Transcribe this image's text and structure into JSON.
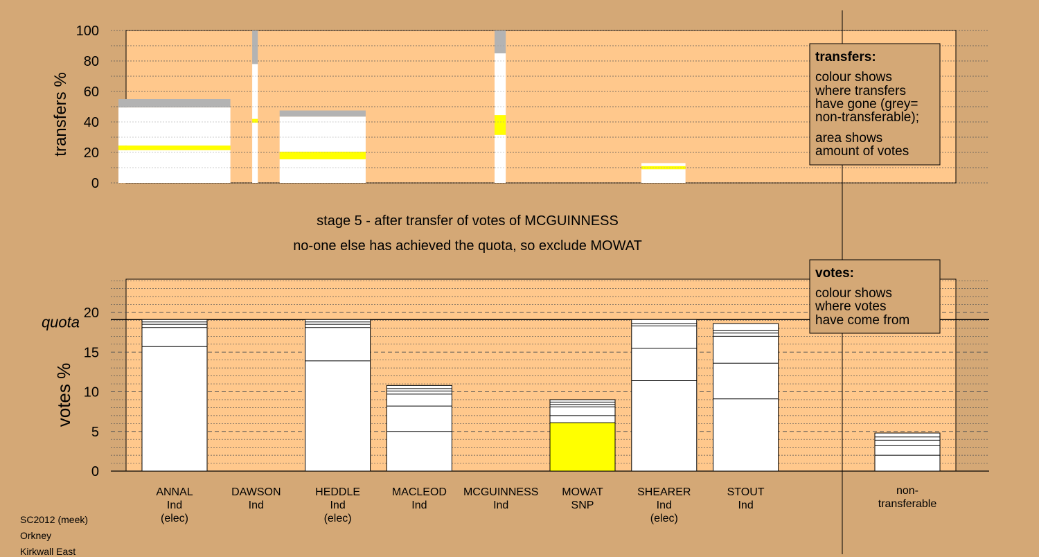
{
  "header": {
    "stage": "stage 5 - after transfer of votes of MCGUINNESS",
    "note": "no-one else has achieved the quota, so exclude MOWAT"
  },
  "footer": {
    "line1": "SC2012 (meek)",
    "line2": "Orkney",
    "line3": "Kirkwall East"
  },
  "colors": {
    "background": "#d4a876",
    "plot": "#ffc88c",
    "white": "#ffffff",
    "yellow": "#ffff00",
    "grey": "#b3b3b3"
  },
  "chart_data": [
    {
      "type": "bar",
      "name": "transfers",
      "ylabel": "transfers %",
      "ylim": [
        0,
        100
      ],
      "yticks": [
        0,
        20,
        40,
        60,
        80,
        100
      ],
      "legend": {
        "title": "transfers:",
        "lines": [
          "colour shows",
          "where transfers",
          "have gone (grey=",
          "non-transferable);",
          "area shows",
          "amount of votes"
        ]
      },
      "bars": [
        {
          "candidate": "ANNAL",
          "width_share": 16.0,
          "segments": [
            {
              "color": "white",
              "from": 0,
              "to": 21.5
            },
            {
              "color": "yellow",
              "from": 21.5,
              "to": 24.5
            },
            {
              "color": "white",
              "from": 24.5,
              "to": 49.5
            },
            {
              "color": "grey",
              "from": 49.5,
              "to": 55
            }
          ]
        },
        {
          "candidate": "DAWSON",
          "width_share": 0.8,
          "segments": [
            {
              "color": "white",
              "from": 0,
              "to": 39.5
            },
            {
              "color": "yellow",
              "from": 39.5,
              "to": 42
            },
            {
              "color": "white",
              "from": 42,
              "to": 78
            },
            {
              "color": "grey",
              "from": 78,
              "to": 100
            }
          ]
        },
        {
          "candidate": "HEDDLE",
          "width_share": 12.3,
          "segments": [
            {
              "color": "white",
              "from": 0,
              "to": 15.5
            },
            {
              "color": "yellow",
              "from": 15.5,
              "to": 20.5
            },
            {
              "color": "white",
              "from": 20.5,
              "to": 43.5
            },
            {
              "color": "grey",
              "from": 43.5,
              "to": 47.5
            }
          ]
        },
        {
          "candidate": "MCGUINNESS",
          "width_share": 1.6,
          "segments": [
            {
              "color": "white",
              "from": 0,
              "to": 31.5
            },
            {
              "color": "yellow",
              "from": 31.5,
              "to": 44.5
            },
            {
              "color": "white",
              "from": 44.5,
              "to": 85
            },
            {
              "color": "grey",
              "from": 85,
              "to": 100
            }
          ]
        },
        {
          "candidate": "SHEARER",
          "width_share": 6.3,
          "segments": [
            {
              "color": "white",
              "from": 0,
              "to": 9
            },
            {
              "color": "yellow",
              "from": 9,
              "to": 11
            },
            {
              "color": "white",
              "from": 11,
              "to": 13
            }
          ]
        }
      ]
    },
    {
      "type": "bar",
      "name": "votes",
      "ylabel": "votes %",
      "ylim": [
        0,
        24
      ],
      "yticks": [
        0,
        5,
        10,
        15,
        20
      ],
      "quota": 19.1,
      "quota_label": "quota",
      "legend": {
        "title": "votes:",
        "lines": [
          "colour shows",
          "where votes",
          "have come from"
        ]
      },
      "categories": [
        {
          "name": "ANNAL",
          "party": "Ind",
          "status": "(elec)",
          "total": 19.1,
          "dividers": [
            15.7,
            18.1,
            18.5,
            18.8
          ],
          "yellow": 0
        },
        {
          "name": "DAWSON",
          "party": "Ind",
          "status": "",
          "total": 0,
          "dividers": [],
          "yellow": 0
        },
        {
          "name": "HEDDLE",
          "party": "Ind",
          "status": "(elec)",
          "total": 19.1,
          "dividers": [
            13.9,
            18.1,
            18.5,
            18.8
          ],
          "yellow": 0
        },
        {
          "name": "MACLEOD",
          "party": "Ind",
          "status": "",
          "total": 10.8,
          "dividers": [
            5.0,
            8.2,
            9.7,
            10.1,
            10.4
          ],
          "yellow": 0
        },
        {
          "name": "MCGUINNESS",
          "party": "Ind",
          "status": "",
          "total": 0,
          "dividers": [],
          "yellow": 0
        },
        {
          "name": "MOWAT",
          "party": "SNP",
          "status": "",
          "total": 9.0,
          "dividers": [
            7.0,
            8.1,
            8.4,
            8.7
          ],
          "yellow": 6.1
        },
        {
          "name": "SHEARER",
          "party": "Ind",
          "status": "(elec)",
          "total": 19.1,
          "dividers": [
            11.4,
            15.5,
            18.3,
            18.6
          ],
          "yellow": 0
        },
        {
          "name": "STOUT",
          "party": "Ind",
          "status": "",
          "total": 18.6,
          "dividers": [
            9.1,
            13.6,
            17.0,
            17.4,
            17.7
          ],
          "yellow": 0
        }
      ],
      "nontransferable": {
        "label1": "non-",
        "label2": "transferable",
        "total": 4.8,
        "dividers": [
          2.0,
          3.2,
          3.9,
          4.3
        ]
      }
    }
  ]
}
